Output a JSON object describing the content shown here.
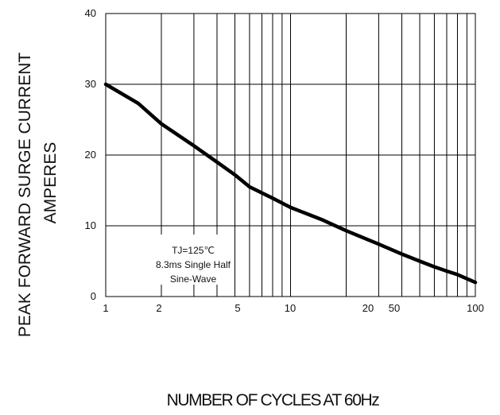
{
  "chart_data": {
    "type": "line",
    "ylabel_line1": "PEAK FORWARD SURGE CURRENT",
    "ylabel_line2": "AMPERES",
    "xlabel": "NUMBER OF CYCLES AT 60Hz",
    "ylim": [
      0,
      40
    ],
    "yticks": [
      0,
      10,
      20,
      30,
      40
    ],
    "x_axis": "log-style, 1 to 100",
    "xtick_labels": [
      "1",
      "2",
      "5",
      "10",
      "20",
      "50",
      "100"
    ],
    "grid": true,
    "annotation": [
      "TJ=125℃",
      "8.3ms Single Half",
      "Sine-Wave"
    ],
    "series": [
      {
        "x": [
          1,
          1.5,
          2,
          3,
          4,
          5,
          6,
          8,
          10,
          15,
          20,
          30,
          40,
          50,
          60,
          70,
          80,
          100
        ],
        "values": [
          30,
          27.3,
          24.4,
          21.3,
          19.0,
          17.2,
          15.5,
          13.9,
          12.6,
          10.8,
          9.3,
          7.4,
          6.0,
          5.0,
          4.2,
          3.6,
          3.1,
          2.0
        ]
      }
    ]
  }
}
